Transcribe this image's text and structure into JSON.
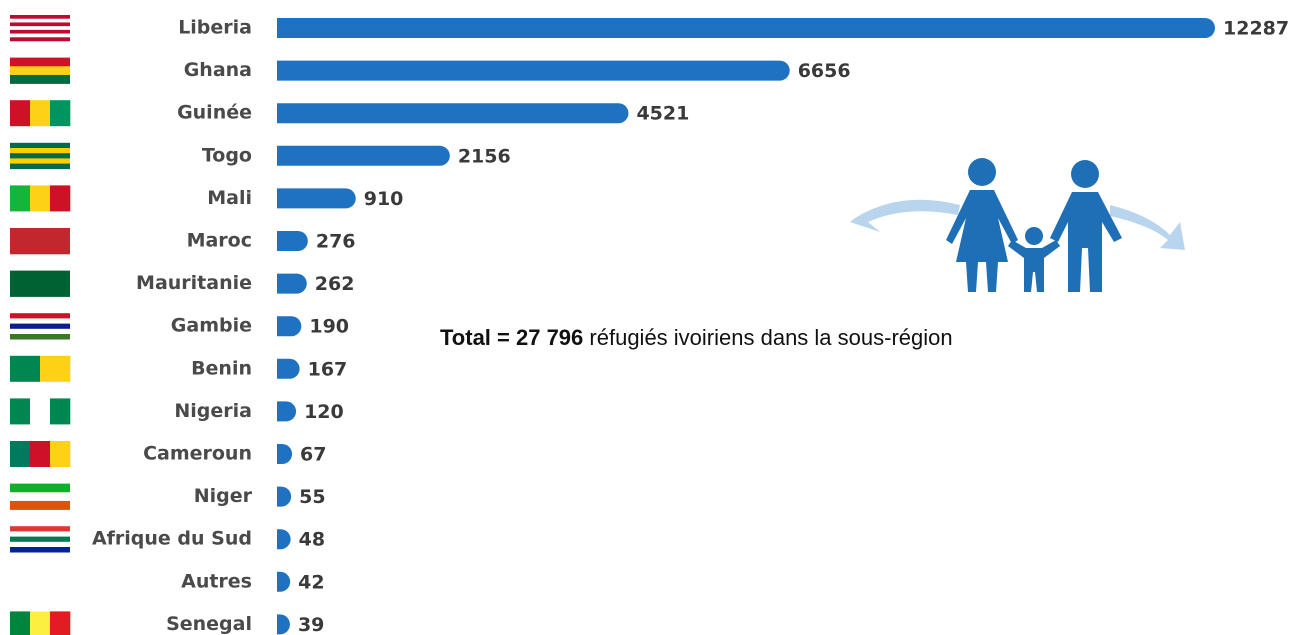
{
  "chart_data": {
    "type": "bar",
    "orientation": "horizontal",
    "color": "#1f72c1",
    "categories": [
      "Liberia",
      "Ghana",
      "Guinée",
      "Togo",
      "Mali",
      "Maroc",
      "Mauritanie",
      "Gambie",
      "Benin",
      "Nigeria",
      "Cameroun",
      "Niger",
      "Afrique du Sud",
      "Autres",
      "Senegal"
    ],
    "values": [
      12287,
      6656,
      4521,
      2156,
      910,
      276,
      262,
      190,
      167,
      120,
      67,
      55,
      48,
      42,
      39
    ],
    "annotation": {
      "bold": "Total =  27 796",
      "text": "réfugiés ivoiriens dans la sous-région"
    }
  }
}
